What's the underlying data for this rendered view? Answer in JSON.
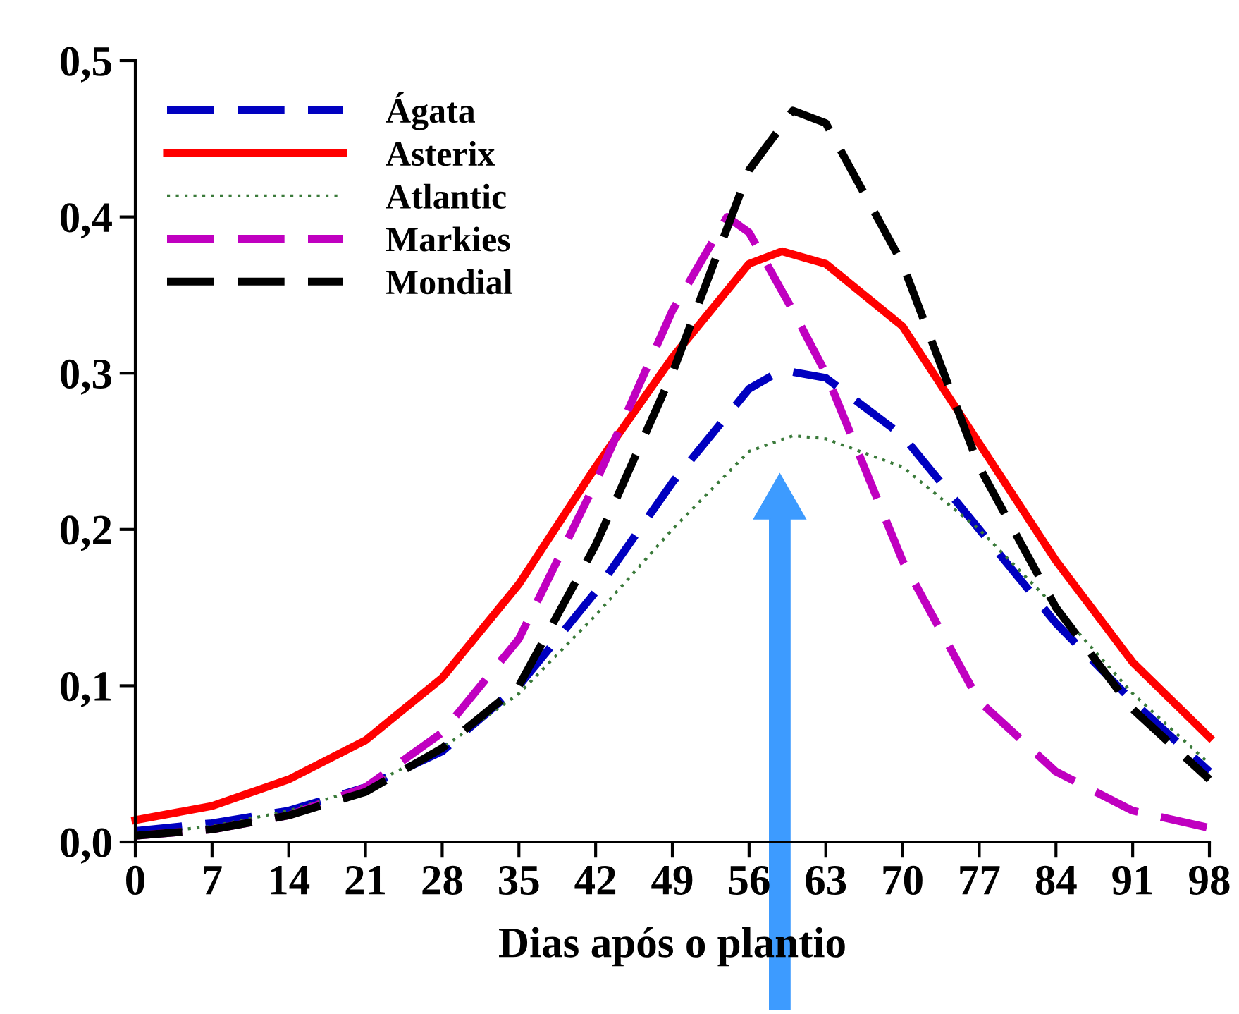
{
  "chart_data": {
    "type": "line",
    "xlabel": "Dias após o plantio",
    "xlim": [
      0,
      98
    ],
    "xticks": [
      0,
      7,
      14,
      21,
      28,
      35,
      42,
      49,
      56,
      63,
      70,
      77,
      84,
      91,
      98
    ],
    "ylim": [
      0,
      0.5
    ],
    "yticks": [
      {
        "value": 0,
        "label": "0,0"
      },
      {
        "value": 0.1,
        "label": "0,1"
      },
      {
        "value": 0.2,
        "label": "0,2"
      },
      {
        "value": 0.3,
        "label": "0,3"
      },
      {
        "value": 0.4,
        "label": "0,4"
      },
      {
        "value": 0.5,
        "label": "0,5"
      }
    ],
    "grid": false,
    "legend": "top left",
    "marker": "none",
    "series": [
      {
        "name": "Ágata",
        "color": "#0000c0",
        "line_style": "dashed",
        "x": [
          0,
          7,
          14,
          21,
          28,
          35,
          42,
          49,
          56,
          59,
          63,
          70,
          77,
          84,
          91,
          98
        ],
        "values": [
          0.007,
          0.012,
          0.02,
          0.035,
          0.058,
          0.1,
          0.16,
          0.23,
          0.29,
          0.302,
          0.297,
          0.26,
          0.2,
          0.14,
          0.09,
          0.045
        ]
      },
      {
        "name": "Asterix",
        "color": "#ff0000",
        "line_style": "solid",
        "x": [
          0,
          7,
          14,
          21,
          28,
          35,
          42,
          49,
          56,
          59,
          63,
          70,
          77,
          84,
          91,
          98
        ],
        "values": [
          0.014,
          0.023,
          0.04,
          0.065,
          0.105,
          0.165,
          0.24,
          0.31,
          0.37,
          0.378,
          0.37,
          0.33,
          0.255,
          0.18,
          0.115,
          0.067
        ]
      },
      {
        "name": "Atlantic",
        "color": "#3a7a3a",
        "line_style": "dotted",
        "x": [
          0,
          7,
          14,
          21,
          28,
          35,
          42,
          49,
          56,
          60,
          63,
          70,
          77,
          84,
          91,
          98
        ],
        "values": [
          0.005,
          0.01,
          0.02,
          0.035,
          0.06,
          0.095,
          0.145,
          0.2,
          0.25,
          0.26,
          0.258,
          0.24,
          0.2,
          0.15,
          0.095,
          0.05
        ]
      },
      {
        "name": "Markies",
        "color": "#c000c0",
        "line_style": "dashed",
        "x": [
          0,
          7,
          14,
          21,
          28,
          35,
          42,
          49,
          54,
          56,
          60,
          63,
          70,
          77,
          84,
          91,
          98
        ],
        "values": [
          0.004,
          0.008,
          0.017,
          0.035,
          0.07,
          0.13,
          0.23,
          0.34,
          0.4,
          0.39,
          0.34,
          0.3,
          0.18,
          0.09,
          0.045,
          0.02,
          0.009
        ]
      },
      {
        "name": "Mondial",
        "color": "#000000",
        "line_style": "dashed",
        "x": [
          0,
          7,
          14,
          21,
          28,
          35,
          42,
          49,
          56,
          60,
          63,
          70,
          77,
          84,
          91,
          98
        ],
        "values": [
          0.004,
          0.008,
          0.017,
          0.032,
          0.06,
          0.1,
          0.19,
          0.3,
          0.43,
          0.468,
          0.46,
          0.37,
          0.24,
          0.15,
          0.085,
          0.04
        ]
      }
    ]
  }
}
